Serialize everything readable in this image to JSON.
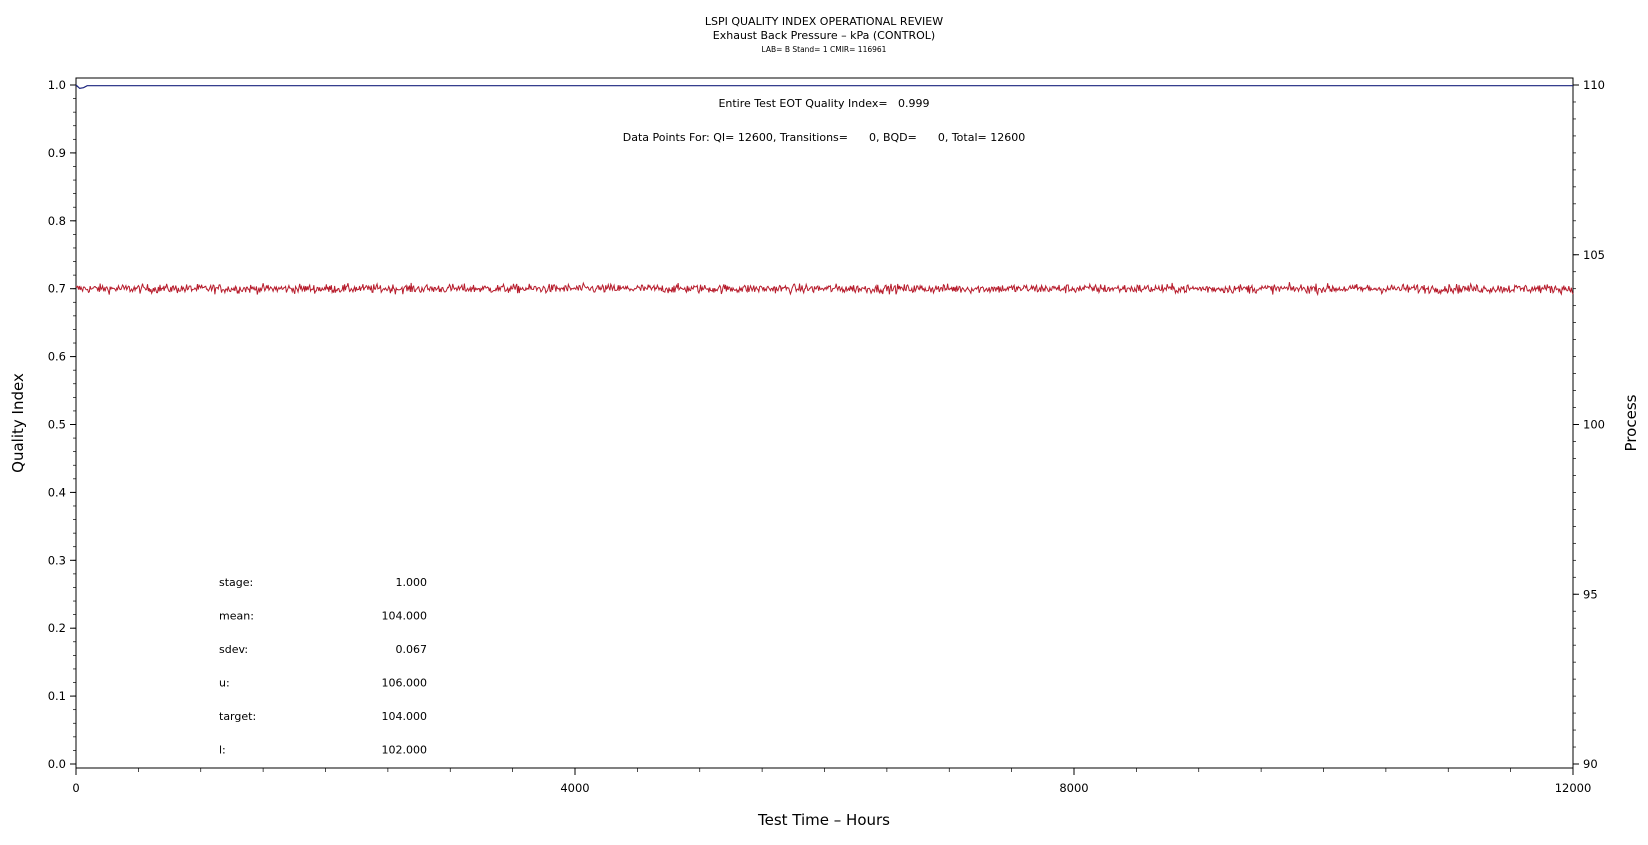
{
  "chart_data": {
    "type": "line",
    "title": "LSPI QUALITY INDEX OPERATIONAL REVIEW",
    "subtitle": "Exhaust Back Pressure – kPa (CONTROL)",
    "subtitle2": "LAB= B Stand= 1 CMIR= 116961",
    "xlabel": "Test Time – Hours",
    "ylabel": "Quality Index",
    "ylabel_right": "Process",
    "xlim": [
      0,
      12000
    ],
    "ylim": [
      0.0,
      1.0
    ],
    "ylim_right": [
      90,
      110
    ],
    "x_ticks": [
      0,
      4000,
      8000,
      12000
    ],
    "x_ticklabels": [
      "0",
      "4000",
      "8000",
      "12000"
    ],
    "y_ticks": [
      0.0,
      0.1,
      0.2,
      0.3,
      0.4,
      0.5,
      0.6,
      0.7,
      0.8,
      0.9,
      1.0
    ],
    "y_ticklabels": [
      "0.0",
      "0.1",
      "0.2",
      "0.3",
      "0.4",
      "0.5",
      "0.6",
      "0.7",
      "0.8",
      "0.9",
      "1.0"
    ],
    "y_right_ticks": [
      90,
      95,
      100,
      105,
      110
    ],
    "y_right_ticklabels": [
      "90",
      "95",
      "100",
      "105",
      "110"
    ],
    "grid": false,
    "series": [
      {
        "axis": "left",
        "color": "#1a237e",
        "x": [
          0,
          30,
          60,
          90,
          120,
          12000
        ],
        "y": [
          1.0,
          0.995,
          0.996,
          0.999,
          0.999,
          0.999
        ]
      },
      {
        "axis": "right",
        "color": "#b71c2c",
        "mean": 104.0,
        "sdev": 0.067,
        "x": [
          0,
          12000
        ],
        "y": [
          104.0,
          104.0
        ]
      }
    ],
    "annotations": {
      "eot": "Entire Test EOT Quality Index=   0.999",
      "datapoints": "Data Points For: QI= 12600, Transitions=      0, BQD=      0, Total= 12600"
    },
    "stats": [
      {
        "label": "stage:",
        "value": "1.000"
      },
      {
        "label": "mean:",
        "value": "104.000"
      },
      {
        "label": "sdev:",
        "value": "0.067"
      },
      {
        "label": "u:",
        "value": "106.000"
      },
      {
        "label": "target:",
        "value": "104.000"
      },
      {
        "label": "l:",
        "value": "102.000"
      }
    ]
  }
}
